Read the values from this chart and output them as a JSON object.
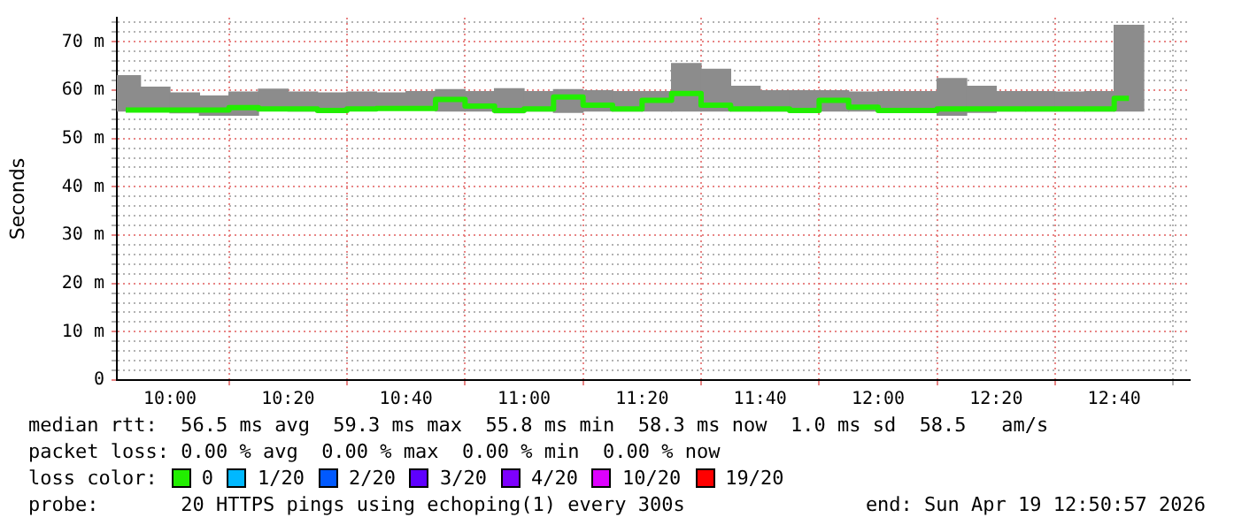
{
  "chart_data": {
    "type": "bar",
    "ylabel": "Seconds",
    "legend_title": "loss color:",
    "legend": "bottom",
    "grid": true,
    "x": [
      9.875,
      9.9583,
      10.0417,
      10.125,
      10.2083,
      10.2917,
      10.375,
      10.4583,
      10.5417,
      10.625,
      10.7083,
      10.7917,
      10.875,
      10.9583,
      11.0417,
      11.125,
      11.2083,
      11.2917,
      11.375,
      11.4583,
      11.5417,
      11.625,
      11.7083,
      11.7917,
      11.875,
      11.9583,
      12.0417,
      12.125,
      12.2083,
      12.2917,
      12.375,
      12.4583,
      12.5417,
      12.625,
      12.7083
    ],
    "xlim": [
      9.85,
      12.88
    ],
    "xticks": [
      {
        "value": 10,
        "label": "10:00"
      },
      {
        "value": 10.3333,
        "label": "10:20"
      },
      {
        "value": 10.6667,
        "label": "10:40"
      },
      {
        "value": 11,
        "label": "11:00"
      },
      {
        "value": 11.3333,
        "label": "11:20"
      },
      {
        "value": 11.6667,
        "label": "11:40"
      },
      {
        "value": 12,
        "label": "12:00"
      },
      {
        "value": 12.3333,
        "label": "12:20"
      },
      {
        "value": 12.6667,
        "label": "12:40"
      }
    ],
    "ylim": [
      0,
      75
    ],
    "yticks": [
      0,
      {
        "value": 2,
        "label": null
      },
      {
        "value": 4,
        "label": null
      },
      {
        "value": 6,
        "label": null
      },
      {
        "value": 8,
        "label": null
      },
      {
        "value": 10,
        "label": "10 m"
      },
      {
        "value": 12,
        "label": null
      },
      {
        "value": 14,
        "label": null
      },
      {
        "value": 16,
        "label": null
      },
      {
        "value": 18,
        "label": null
      },
      {
        "value": 20,
        "label": "20 m"
      },
      {
        "value": 22,
        "label": null
      },
      {
        "value": 24,
        "label": null
      },
      {
        "value": 26,
        "label": null
      },
      {
        "value": 28,
        "label": null
      },
      {
        "value": 30,
        "label": "30 m"
      },
      {
        "value": 32,
        "label": null
      },
      {
        "value": 34,
        "label": null
      },
      {
        "value": 36,
        "label": null
      },
      {
        "value": 38,
        "label": null
      },
      {
        "value": 40,
        "label": "40 m"
      },
      {
        "value": 42,
        "label": null
      },
      {
        "value": 44,
        "label": null
      },
      {
        "value": 46,
        "label": null
      },
      {
        "value": 48,
        "label": null
      },
      {
        "value": 50,
        "label": "50 m"
      },
      {
        "value": 52,
        "label": null
      },
      {
        "value": 54,
        "label": null
      },
      {
        "value": 56,
        "label": null
      },
      {
        "value": 58,
        "label": null
      },
      {
        "value": 60,
        "label": "60 m"
      },
      {
        "value": 62,
        "label": null
      },
      {
        "value": 64,
        "label": null
      },
      {
        "value": 66,
        "label": null
      },
      {
        "value": 68,
        "label": null
      },
      {
        "value": 70,
        "label": "70 m"
      },
      {
        "value": 72,
        "label": null
      },
      {
        "value": 74,
        "label": null
      }
    ],
    "series": [
      {
        "color": "#8c8c8c",
        "base": [
          55.7,
          55.7,
          55.3,
          54.8,
          54.8,
          55.9,
          55.7,
          55.7,
          55.9,
          55.9,
          55.9,
          55.7,
          55.7,
          55.3,
          55.7,
          55.4,
          55.7,
          55.7,
          55.7,
          55.7,
          55.7,
          55.7,
          55.7,
          55.4,
          55.7,
          55.7,
          55.4,
          55.4,
          54.8,
          55.4,
          55.7,
          55.7,
          55.7,
          55.7,
          55.7
        ],
        "values": [
          7.3,
          4.9,
          4.1,
          4.0,
          4.8,
          4.3,
          3.9,
          3.7,
          3.7,
          3.5,
          3.8,
          4.4,
          4.0,
          5.0,
          4.0,
          4.7,
          4.2,
          4.0,
          4.0,
          9.8,
          8.6,
          5.1,
          4.2,
          4.5,
          4.2,
          3.9,
          4.3,
          4.3,
          7.6,
          5.4,
          4.0,
          4.0,
          3.9,
          4.0,
          17.7
        ]
      },
      {
        "type": "step",
        "name": "0",
        "color": "#22ee00",
        "values": [
          55.9,
          55.9,
          55.9,
          55.9,
          56.4,
          56.1,
          56.1,
          55.8,
          56.1,
          56.2,
          56.2,
          58.1,
          56.7,
          55.8,
          56.1,
          58.6,
          56.9,
          56.1,
          57.9,
          59.3,
          56.9,
          56.1,
          56.1,
          55.8,
          57.9,
          56.5,
          55.8,
          55.8,
          56.1,
          56.1,
          56.1,
          56.1,
          56.1,
          56.1,
          58.3
        ]
      },
      {
        "type": "step",
        "name": "1/20",
        "color": "#00b8ff",
        "values": [
          null,
          null,
          null,
          null,
          null,
          null,
          null,
          null,
          null,
          null,
          null,
          null,
          null,
          null,
          null,
          null,
          null,
          null,
          null,
          null,
          null,
          null,
          null,
          null,
          null,
          null,
          null,
          null,
          null,
          null,
          null,
          null,
          null,
          null,
          null
        ]
      },
      {
        "type": "step",
        "name": "2/20",
        "color": "#0059ff",
        "values": [
          null,
          null,
          null,
          null,
          null,
          null,
          null,
          null,
          null,
          null,
          null,
          null,
          null,
          null,
          null,
          null,
          null,
          null,
          null,
          null,
          null,
          null,
          null,
          null,
          null,
          null,
          null,
          null,
          null,
          null,
          null,
          null,
          null,
          null,
          null
        ]
      },
      {
        "type": "step",
        "name": "3/20",
        "color": "#5e00ff",
        "values": [
          null,
          null,
          null,
          null,
          null,
          null,
          null,
          null,
          null,
          null,
          null,
          null,
          null,
          null,
          null,
          null,
          null,
          null,
          null,
          null,
          null,
          null,
          null,
          null,
          null,
          null,
          null,
          null,
          null,
          null,
          null,
          null,
          null,
          null,
          null
        ]
      },
      {
        "type": "step",
        "name": "4/20",
        "color": "#7e00ff",
        "values": [
          null,
          null,
          null,
          null,
          null,
          null,
          null,
          null,
          null,
          null,
          null,
          null,
          null,
          null,
          null,
          null,
          null,
          null,
          null,
          null,
          null,
          null,
          null,
          null,
          null,
          null,
          null,
          null,
          null,
          null,
          null,
          null,
          null,
          null,
          null
        ]
      },
      {
        "type": "step",
        "name": "10/20",
        "color": "#dd00ff",
        "values": [
          null,
          null,
          null,
          null,
          null,
          null,
          null,
          null,
          null,
          null,
          null,
          null,
          null,
          null,
          null,
          null,
          null,
          null,
          null,
          null,
          null,
          null,
          null,
          null,
          null,
          null,
          null,
          null,
          null,
          null,
          null,
          null,
          null,
          null,
          null
        ]
      },
      {
        "type": "step",
        "name": "19/20",
        "color": "#ff0000",
        "values": [
          null,
          null,
          null,
          null,
          null,
          null,
          null,
          null,
          null,
          null,
          null,
          null,
          null,
          null,
          null,
          null,
          null,
          null,
          null,
          null,
          null,
          null,
          null,
          null,
          null,
          null,
          null,
          null,
          null,
          null,
          null,
          null,
          null,
          null,
          null
        ]
      }
    ],
    "annotations": [
      "median rtt:  56.5 ms avg  59.3 ms max  55.8 ms min  58.3 ms now  1.0 ms sd  58.5   am/s",
      "packet loss: 0.00 % avg  0.00 % max  0.00 % min  0.00 % now",
      "probe:       20 HTTPS pings using echoping(1) every 300s",
      "end: Sun Apr 19 12:50:57 2026"
    ]
  }
}
